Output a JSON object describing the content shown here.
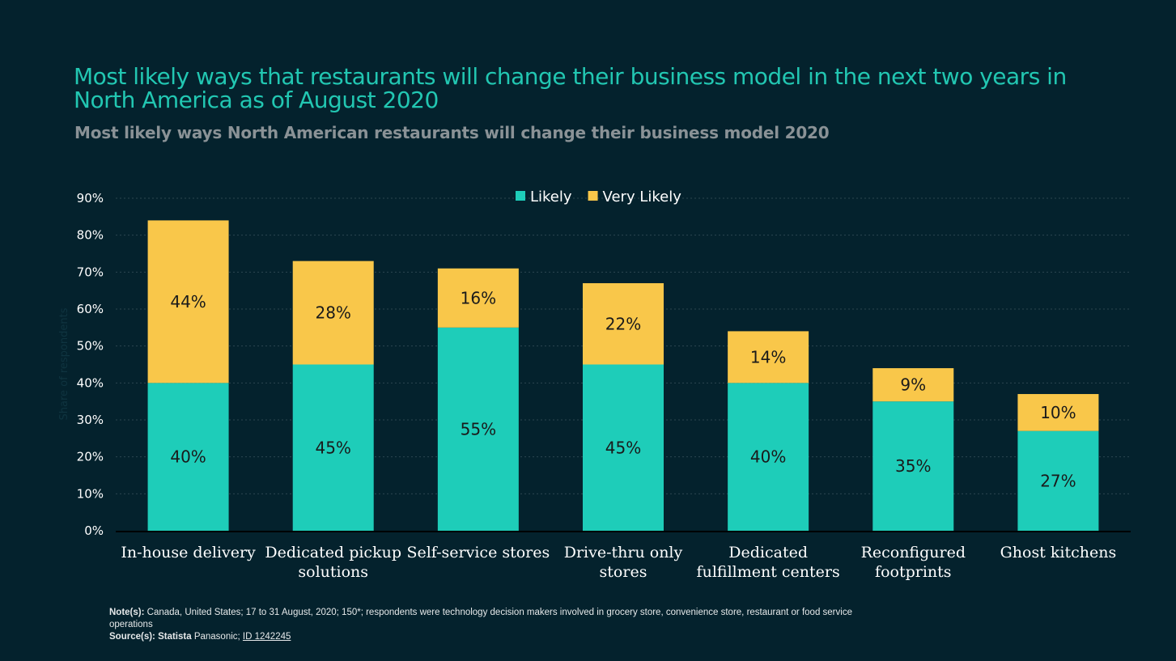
{
  "colors": {
    "background": "#04222d",
    "likely": "#1ecdb9",
    "very_likely": "#f9c74a",
    "title": "#22c7b2"
  },
  "chart_data": {
    "type": "bar",
    "stacked": true,
    "title": "Most likely ways that restaurants will change their business model in the next two years in North America as of August 2020",
    "subtitle": "Most likely ways North American restaurants will change their business model 2020",
    "ylabel": "Share of respondents",
    "ylim": [
      0,
      90
    ],
    "yticks": [
      "0%",
      "10%",
      "20%",
      "30%",
      "40%",
      "50%",
      "60%",
      "70%",
      "80%",
      "90%"
    ],
    "grid": true,
    "legend": "top-center",
    "categories": [
      "In-house delivery",
      "Dedicated pickup solutions",
      "Self-service stores",
      "Drive-thru only stores",
      "Dedicated fulfillment centers",
      "Reconfigured footprints",
      "Ghost kitchens"
    ],
    "series": [
      {
        "name": "Likely",
        "values": [
          40,
          45,
          55,
          45,
          40,
          35,
          27
        ]
      },
      {
        "name": "Very Likely",
        "values": [
          44,
          28,
          16,
          22,
          14,
          9,
          10
        ]
      }
    ]
  },
  "notes": {
    "note_label": "Note(s):",
    "note_text": " Canada, United States; 17 to 31 August, 2020; 150*; respondents were technology decision makers involved in grocery store, convenience store, restaurant or food service operations",
    "source_label": "Source(s):",
    "source_brand": "Statista",
    "source_text": " Panasonic; ",
    "source_id": "ID 1242245"
  }
}
